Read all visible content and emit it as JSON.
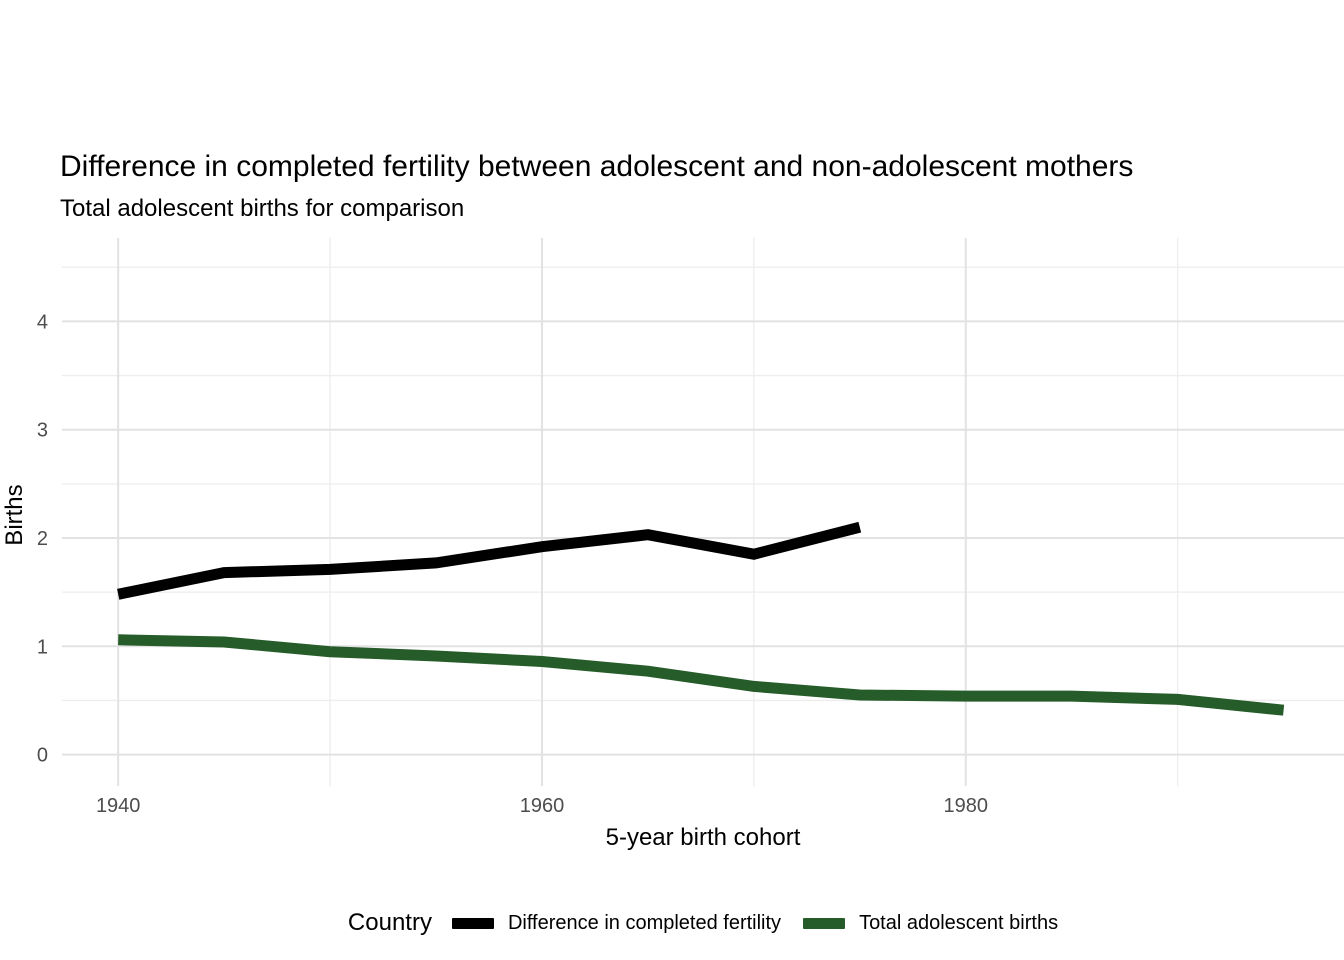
{
  "title": "Difference in completed fertility between adolescent and non-adolescent mothers",
  "subtitle": "Total adolescent births for comparison",
  "axes": {
    "x_label": "5-year birth cohort",
    "y_label": "Births"
  },
  "legend": {
    "title": "Country"
  },
  "colors": {
    "background": "#FFFFFF",
    "grid_major": "#E2E2E2",
    "grid_minor": "#EDEDED",
    "tick_label": "#4D4D4D",
    "text": "#000000",
    "series_difference": "#000000",
    "series_total": "#265C29"
  },
  "chart_data": {
    "type": "line",
    "title": "Difference in completed fertility between adolescent and non-adolescent mothers",
    "subtitle": "Total adolescent births for comparison",
    "xlabel": "5-year birth cohort",
    "ylabel": "Births",
    "x_ticks": [
      1940,
      1960,
      1980
    ],
    "x_tick_labels": [
      "1940",
      "1960",
      "1980"
    ],
    "x_minor": [
      1950,
      1970,
      1990
    ],
    "y_ticks": [
      0,
      1,
      2,
      3,
      4
    ],
    "y_tick_labels": [
      "0",
      "1",
      "2",
      "3",
      "4"
    ],
    "y_minor": [
      0.5,
      1.5,
      2.5,
      3.5,
      4.5
    ],
    "xlim": [
      1937.35,
      1997.85
    ],
    "ylim": [
      -0.29,
      4.77
    ],
    "grid": "major+minor",
    "legend_position": "bottom",
    "legend_title": "Country",
    "series": [
      {
        "name": "Difference in completed fertility",
        "color": "#000000",
        "x": [
          1940,
          1945,
          1950,
          1955,
          1960,
          1965,
          1970,
          1975
        ],
        "values": [
          1.48,
          1.68,
          1.71,
          1.77,
          1.92,
          2.03,
          1.85,
          2.1
        ]
      },
      {
        "name": "Total adolescent births",
        "color": "#265C29",
        "x": [
          1940,
          1945,
          1950,
          1955,
          1960,
          1965,
          1970,
          1975,
          1980,
          1985,
          1990,
          1995
        ],
        "values": [
          1.06,
          1.04,
          0.95,
          0.91,
          0.86,
          0.77,
          0.63,
          0.55,
          0.54,
          0.54,
          0.51,
          0.41
        ]
      }
    ]
  }
}
